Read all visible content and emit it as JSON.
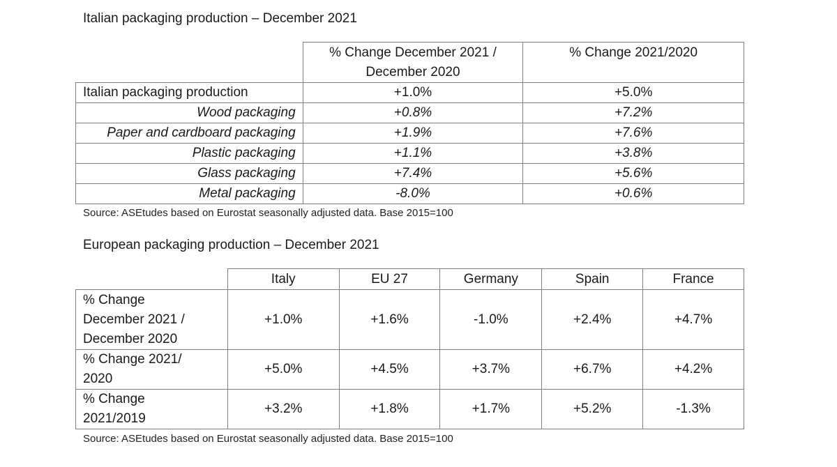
{
  "italian": {
    "title": "Italian packaging production – December 2021",
    "headers": [
      "% Change December 2021 / December 2020",
      "% Change 2021/2020"
    ],
    "rows": [
      {
        "label": "Italian  packaging production",
        "dec": "+1.0%",
        "year": "+5.0%"
      },
      {
        "label": "Wood packaging",
        "dec": "+0.8%",
        "year": "+7.2%"
      },
      {
        "label": "Paper and cardboard packaging",
        "dec": "+1.9%",
        "year": "+7.6%"
      },
      {
        "label": "Plastic packaging",
        "dec": "+1.1%",
        "year": "+3.8%"
      },
      {
        "label": "Glass packaging",
        "dec": "+7.4%",
        "year": "+5.6%"
      },
      {
        "label": "Metal packaging",
        "dec": "-8.0%",
        "year": "+0.6%"
      }
    ],
    "source": "Source: ASEtudes based on Eurostat seasonally adjusted data. Base 2015=100"
  },
  "european": {
    "title": "European packaging production – December 2021",
    "columns": [
      "Italy",
      "EU 27",
      "Germany",
      "Spain",
      "France"
    ],
    "rows": [
      {
        "label": "% Change December 2021 / December 2020",
        "values": [
          "+1.0%",
          "+1.6%",
          "-1.0%",
          "+2.4%",
          "+4.7%"
        ]
      },
      {
        "label": "% Change 2021/ 2020",
        "values": [
          "+5.0%",
          "+4.5%",
          "+3.7%",
          "+6.7%",
          "+4.2%"
        ]
      },
      {
        "label": "% Change 2021/2019",
        "values": [
          "+3.2%",
          "+1.8%",
          "+1.7%",
          "+5.2%",
          "-1.3%"
        ]
      }
    ],
    "source": "Source: ASEtudes based on Eurostat seasonally adjusted data. Base 2015=100"
  }
}
